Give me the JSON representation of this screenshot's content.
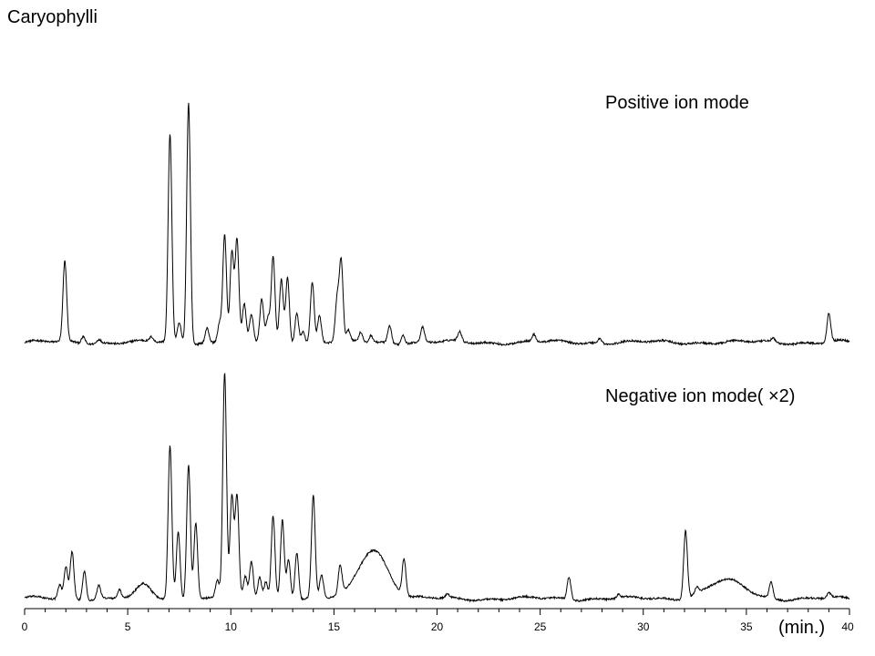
{
  "title": "Caryophylli",
  "chart_data": {
    "type": "line",
    "title": "Caryophylli",
    "xlabel": "(min.)",
    "ylabel": "",
    "xlim": [
      0,
      40
    ],
    "x_ticks": [
      0,
      5,
      10,
      15,
      20,
      25,
      30,
      35,
      40
    ],
    "grid": false,
    "series": [
      {
        "name": "Positive ion mode",
        "color": "#000000",
        "baseline": 0.02,
        "peaks": [
          {
            "x": 1.95,
            "y": 0.33
          },
          {
            "x": 2.85,
            "y": 0.03
          },
          {
            "x": 3.6,
            "y": 0.015
          },
          {
            "x": 6.15,
            "y": 0.02
          },
          {
            "x": 7.05,
            "y": 0.86
          },
          {
            "x": 7.5,
            "y": 0.08
          },
          {
            "x": 7.95,
            "y": 1.0
          },
          {
            "x": 8.85,
            "y": 0.06
          },
          {
            "x": 9.45,
            "y": 0.08
          },
          {
            "x": 9.7,
            "y": 0.45
          },
          {
            "x": 10.05,
            "y": 0.37
          },
          {
            "x": 10.3,
            "y": 0.42
          },
          {
            "x": 10.65,
            "y": 0.15
          },
          {
            "x": 11.0,
            "y": 0.11
          },
          {
            "x": 11.5,
            "y": 0.18
          },
          {
            "x": 11.8,
            "y": 0.1
          },
          {
            "x": 12.05,
            "y": 0.35
          },
          {
            "x": 12.45,
            "y": 0.26
          },
          {
            "x": 12.75,
            "y": 0.27
          },
          {
            "x": 13.2,
            "y": 0.13
          },
          {
            "x": 13.5,
            "y": 0.05
          },
          {
            "x": 13.95,
            "y": 0.25
          },
          {
            "x": 14.3,
            "y": 0.11
          },
          {
            "x": 15.15,
            "y": 0.17
          },
          {
            "x": 15.35,
            "y": 0.33
          },
          {
            "x": 15.7,
            "y": 0.04
          },
          {
            "x": 16.3,
            "y": 0.04
          },
          {
            "x": 16.8,
            "y": 0.03
          },
          {
            "x": 17.7,
            "y": 0.07
          },
          {
            "x": 18.35,
            "y": 0.04
          },
          {
            "x": 19.3,
            "y": 0.06
          },
          {
            "x": 21.1,
            "y": 0.04
          },
          {
            "x": 24.7,
            "y": 0.03
          },
          {
            "x": 27.9,
            "y": 0.02
          },
          {
            "x": 36.3,
            "y": 0.015
          },
          {
            "x": 39.0,
            "y": 0.12
          }
        ]
      },
      {
        "name": "Negative ion mode( ×2)",
        "color": "#000000",
        "baseline": 0.02,
        "peaks": [
          {
            "x": 1.7,
            "y": 0.06
          },
          {
            "x": 2.0,
            "y": 0.14
          },
          {
            "x": 2.3,
            "y": 0.21
          },
          {
            "x": 2.9,
            "y": 0.13
          },
          {
            "x": 3.6,
            "y": 0.06
          },
          {
            "x": 4.6,
            "y": 0.04
          },
          {
            "x": 5.8,
            "y": 0.06
          },
          {
            "x": 7.05,
            "y": 0.68
          },
          {
            "x": 7.45,
            "y": 0.3
          },
          {
            "x": 7.95,
            "y": 0.6
          },
          {
            "x": 8.3,
            "y": 0.34
          },
          {
            "x": 9.35,
            "y": 0.08
          },
          {
            "x": 9.7,
            "y": 1.0
          },
          {
            "x": 10.05,
            "y": 0.45
          },
          {
            "x": 10.3,
            "y": 0.45
          },
          {
            "x": 10.7,
            "y": 0.09
          },
          {
            "x": 11.0,
            "y": 0.16
          },
          {
            "x": 11.4,
            "y": 0.1
          },
          {
            "x": 11.7,
            "y": 0.08
          },
          {
            "x": 12.05,
            "y": 0.37
          },
          {
            "x": 12.5,
            "y": 0.35
          },
          {
            "x": 12.8,
            "y": 0.18
          },
          {
            "x": 13.2,
            "y": 0.21
          },
          {
            "x": 14.0,
            "y": 0.45
          },
          {
            "x": 14.4,
            "y": 0.1
          },
          {
            "x": 15.3,
            "y": 0.13
          },
          {
            "x": 16.9,
            "y": 0.22
          },
          {
            "x": 18.4,
            "y": 0.16
          },
          {
            "x": 20.5,
            "y": 0.015
          },
          {
            "x": 26.4,
            "y": 0.1
          },
          {
            "x": 28.8,
            "y": 0.015
          },
          {
            "x": 32.05,
            "y": 0.3
          },
          {
            "x": 32.6,
            "y": 0.03
          },
          {
            "x": 34.0,
            "y": 0.08
          },
          {
            "x": 36.2,
            "y": 0.07
          },
          {
            "x": 39.0,
            "y": 0.02
          }
        ]
      }
    ]
  }
}
